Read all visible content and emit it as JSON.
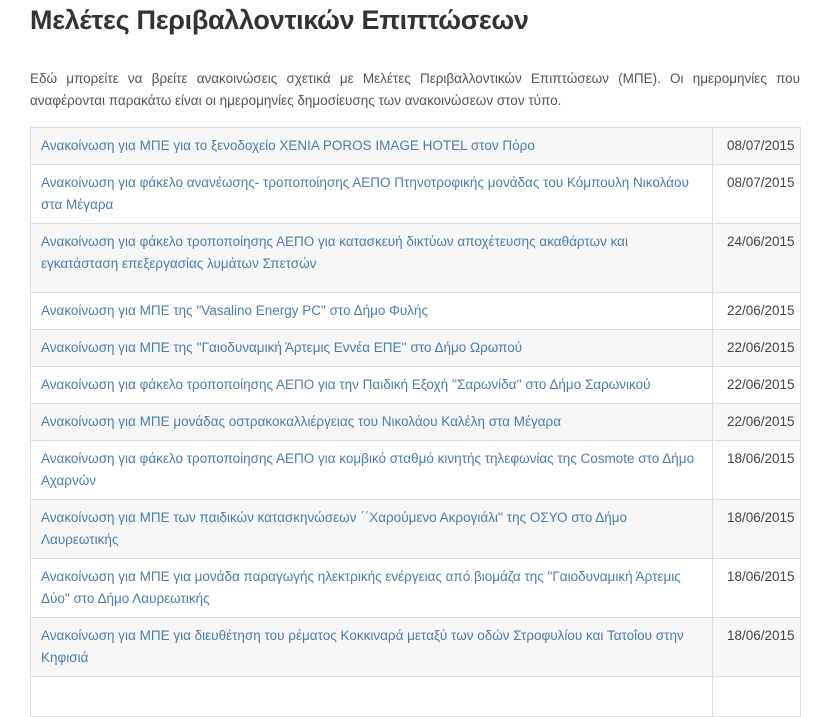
{
  "page": {
    "title": "Μελέτες Περιβαλλοντικών Επιπτώσεων",
    "intro": "Εδώ μπορείτε να βρείτε ανακοινώσεις σχετικά με Μελέτες Περιβαλλοντικών Επιπτώσεων (ΜΠΕ). Οι ημερομηνίες που αναφέρονται παρακάτω είναι οι ημερομηνίες δημοσίευσης των ανακοινώσεων στον τύπο."
  },
  "colors": {
    "link": "#4a7dad",
    "title": "#333333",
    "body_text": "#555555",
    "date_text": "#444444",
    "table_border": "#dddddd",
    "row_stripe": "#f7f7f7"
  },
  "announcements": [
    {
      "title": "Ανακοίνωση για ΜΠΕ για το ξενοδοχείο XENIA POROS IMAGE HOTEL στον Πόρο",
      "date": "08/07/2015"
    },
    {
      "title": "Ανακοίνωση για φάκελο ανανέωσης- τροποποίησης ΑΕΠΟ Πτηνοτροφικής μονάδας του Κόμπουλη Νικολάου στα Μέγαρα",
      "date": "08/07/2015"
    },
    {
      "title": "Ανακοίνωση για φάκελο τροποποίησης ΑΕΠΟ για κατασκευή δικτύων αποχέτευσης ακαθάρτων και εγκατάσταση επεξεργασίας λυμάτων Σπετσών",
      "date": "24/06/2015"
    },
    {
      "title": "Ανακοίνωση για ΜΠΕ της \"Vasalino Energy PC\" στο Δήμο Φυλής",
      "date": "22/06/2015"
    },
    {
      "title": "Ανακοίνωση για ΜΠΕ της ''Γαιοδυναμική Άρτεμις Εννέα ΕΠΕ'' στο Δήμο Ωρωπού",
      "date": "22/06/2015"
    },
    {
      "title": "Ανακοίνωση για φάκελο τροποποίησης ΑΕΠΟ για την Παιδική Εξοχή ''Σαρωνίδα'' στο Δήμο Σαρωνικού",
      "date": "22/06/2015"
    },
    {
      "title": "Ανακοίνωση για ΜΠΕ μονάδας οστρακοκαλλιέργειας του Νικολάου Καλέλη στα Μέγαρα",
      "date": "22/06/2015"
    },
    {
      "title": "Ανακοίνωση για φάκελο τροποποίησης ΑΕΠΟ για κομβικό σταθμό κινητής τηλεφωνίας της Cosmote στο Δήμο Αχαρνών",
      "date": "18/06/2015"
    },
    {
      "title": "Ανακοίνωση για ΜΠΕ των παιδικών κατασκηνώσεων ΄΄Χαρούμενο Ακρογιάλι'' της ΟΣΥΟ στο Δήμο Λαυρεωτικής",
      "date": "18/06/2015"
    },
    {
      "title": "Ανακοίνωση για ΜΠΕ για μονάδα παραγωγής ηλεκτρικής ενέργειας από βιομάζα της \"Γαιοδυναμική Άρτεμις Δύο\" στο Δήμο Λαυρεωτικής",
      "date": "18/06/2015"
    },
    {
      "title": "Ανακοίνωση για ΜΠΕ για διευθέτηση του ρέματος Κοκκιναρά μεταξύ των οδών Στροφυλίου και Τατοΐου στην Κηφισιά",
      "date": "18/06/2015"
    }
  ]
}
